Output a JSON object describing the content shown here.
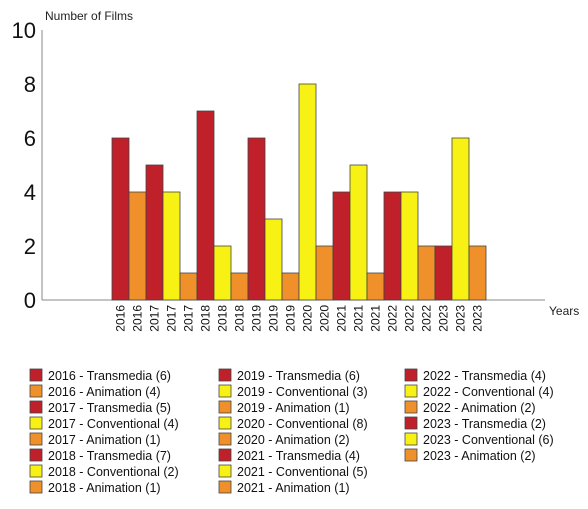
{
  "chart_data": {
    "type": "bar",
    "xlabel": "Years",
    "ylabel": "Number of Films",
    "ylim": [
      0,
      10
    ],
    "yticks": [
      0,
      2,
      4,
      6,
      8,
      10
    ],
    "grid": false,
    "legend_position": "bottom",
    "colors": {
      "Transmedia": "#c0202a",
      "Conventional": "#f7f214",
      "Animation": "#f0902a"
    },
    "bars": [
      {
        "year": "2016",
        "kind": "Transmedia",
        "value": 6
      },
      {
        "year": "2016",
        "kind": "Animation",
        "value": 4
      },
      {
        "year": "2017",
        "kind": "Transmedia",
        "value": 5
      },
      {
        "year": "2017",
        "kind": "Conventional",
        "value": 4
      },
      {
        "year": "2017",
        "kind": "Animation",
        "value": 1
      },
      {
        "year": "2018",
        "kind": "Transmedia",
        "value": 7
      },
      {
        "year": "2018",
        "kind": "Conventional",
        "value": 2
      },
      {
        "year": "2018",
        "kind": "Animation",
        "value": 1
      },
      {
        "year": "2019",
        "kind": "Transmedia",
        "value": 6
      },
      {
        "year": "2019",
        "kind": "Conventional",
        "value": 3
      },
      {
        "year": "2019",
        "kind": "Animation",
        "value": 1
      },
      {
        "year": "2020",
        "kind": "Conventional",
        "value": 8
      },
      {
        "year": "2020",
        "kind": "Animation",
        "value": 2
      },
      {
        "year": "2021",
        "kind": "Transmedia",
        "value": 4
      },
      {
        "year": "2021",
        "kind": "Conventional",
        "value": 5
      },
      {
        "year": "2021",
        "kind": "Animation",
        "value": 1
      },
      {
        "year": "2022",
        "kind": "Transmedia",
        "value": 4
      },
      {
        "year": "2022",
        "kind": "Conventional",
        "value": 4
      },
      {
        "year": "2022",
        "kind": "Animation",
        "value": 2
      },
      {
        "year": "2023",
        "kind": "Transmedia",
        "value": 2
      },
      {
        "year": "2023",
        "kind": "Conventional",
        "value": 6
      },
      {
        "year": "2023",
        "kind": "Animation",
        "value": 2
      }
    ],
    "legend": [
      {
        "label": "2016 - Transmedia (6)",
        "kind": "Transmedia"
      },
      {
        "label": "2016 - Animation (4)",
        "kind": "Animation"
      },
      {
        "label": "2017 - Transmedia (5)",
        "kind": "Transmedia"
      },
      {
        "label": "2017 - Conventional (4)",
        "kind": "Conventional"
      },
      {
        "label": "2017 - Animation (1)",
        "kind": "Animation"
      },
      {
        "label": "2018 - Transmedia (7)",
        "kind": "Transmedia"
      },
      {
        "label": "2018 - Conventional  (2)",
        "kind": "Conventional"
      },
      {
        "label": "2018 - Animation (1)",
        "kind": "Animation"
      },
      {
        "label": "2019 - Transmedia (6)",
        "kind": "Transmedia"
      },
      {
        "label": "2019 - Conventional  (3)",
        "kind": "Conventional"
      },
      {
        "label": "2019 - Animation (1)",
        "kind": "Animation"
      },
      {
        "label": "2020 - Conventional  (8)",
        "kind": "Conventional"
      },
      {
        "label": "2020 - Animation (2)",
        "kind": "Animation"
      },
      {
        "label": "2021 - Transmedia (4)",
        "kind": "Transmedia"
      },
      {
        "label": "2021 - Conventional  (5)",
        "kind": "Conventional"
      },
      {
        "label": "2021 - Animation (1)",
        "kind": "Animation"
      },
      {
        "label": "2022 - Transmedia (4)",
        "kind": "Transmedia"
      },
      {
        "label": "2022 - Conventional  (4)",
        "kind": "Conventional"
      },
      {
        "label": "2022 - Animation (2)",
        "kind": "Animation"
      },
      {
        "label": "2023 - Transmedia (2)",
        "kind": "Transmedia"
      },
      {
        "label": "2023 - Conventional  (6)",
        "kind": "Conventional"
      },
      {
        "label": "2023 - Animation (2)",
        "kind": "Animation"
      }
    ]
  }
}
